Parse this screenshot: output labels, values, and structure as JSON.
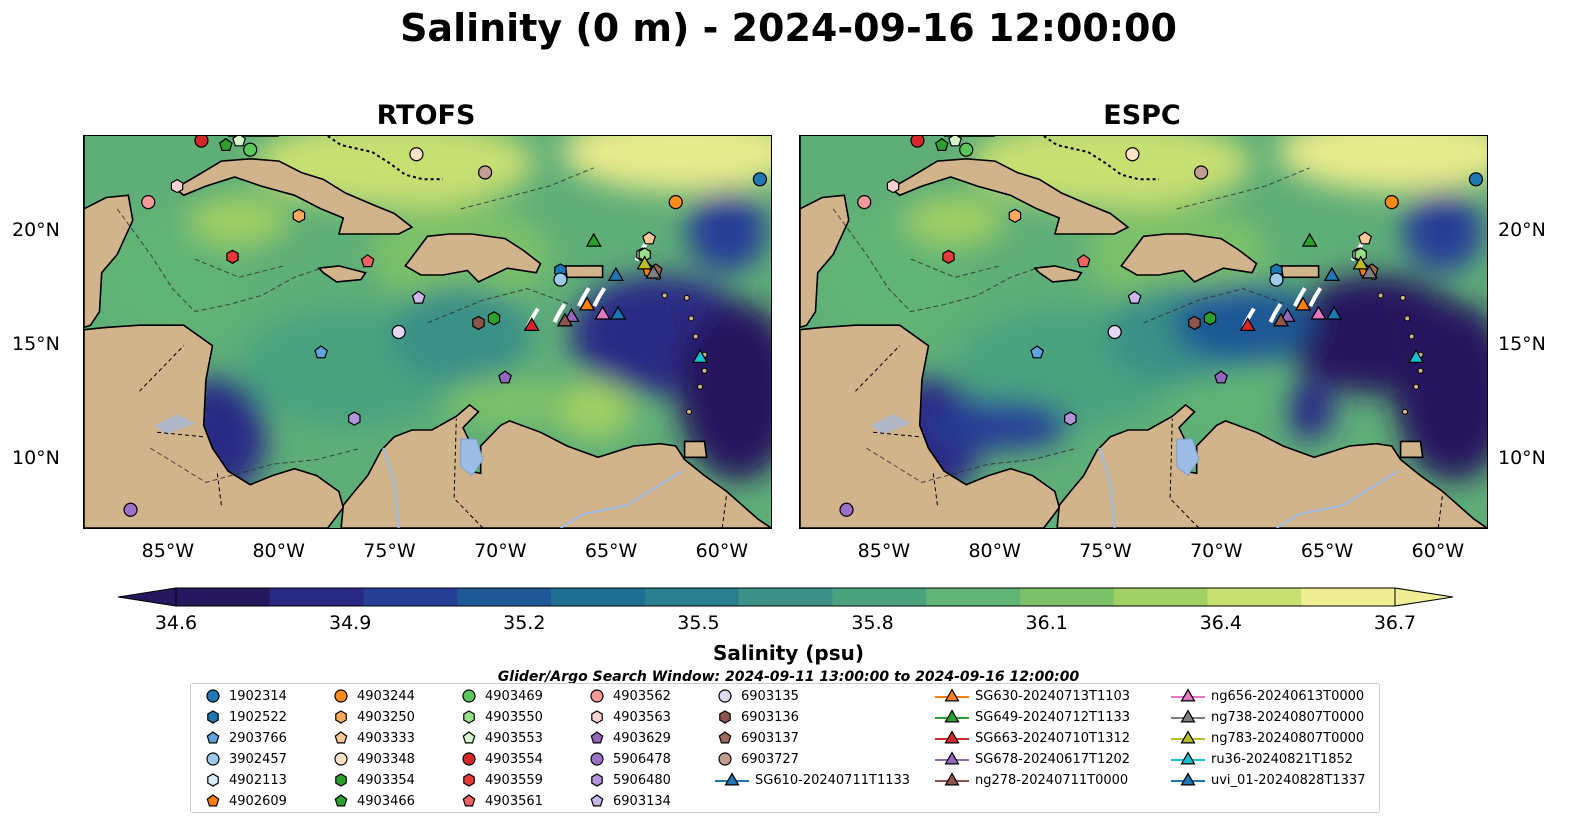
{
  "title": "Salinity (0 m) - 2024-09-16 12:00:00",
  "panels": [
    {
      "name": "RTOFS",
      "side": "left"
    },
    {
      "name": "ESPC",
      "side": "right"
    }
  ],
  "map_extent": {
    "lon": [
      -89,
      -58
    ],
    "lat": [
      7,
      24.2
    ]
  },
  "lon_ticks": [
    {
      "value": -85,
      "label": "85°W"
    },
    {
      "value": -80,
      "label": "80°W"
    },
    {
      "value": -75,
      "label": "75°W"
    },
    {
      "value": -70,
      "label": "70°W"
    },
    {
      "value": -65,
      "label": "65°W"
    },
    {
      "value": -60,
      "label": "60°W"
    }
  ],
  "lat_ticks": [
    {
      "value": 20,
      "label": "20°N"
    },
    {
      "value": 15,
      "label": "15°N"
    },
    {
      "value": 10,
      "label": "10°N"
    }
  ],
  "colorbar": {
    "title": "Salinity (psu)",
    "min": 34.6,
    "max": 36.7,
    "ticks": [
      "34.6",
      "34.9",
      "35.2",
      "35.5",
      "35.8",
      "36.1",
      "36.4",
      "36.7"
    ],
    "colors": [
      "#26185f",
      "#2a2a85",
      "#263e96",
      "#1f5896",
      "#1e6f92",
      "#297f8d",
      "#3b9087",
      "#4aa37f",
      "#60b475",
      "#7cc169",
      "#a0cf64",
      "#c8df72",
      "#f0ee95"
    ]
  },
  "search_window": "Glider/Argo Search Window: 2024-09-11 13:00:00 to 2024-09-16 12:00:00",
  "legend": {
    "columns": [
      [
        {
          "label": "1902314",
          "marker": "circle",
          "color": "#1f77b4"
        },
        {
          "label": "1902522",
          "marker": "hexagon",
          "color": "#1f77b4"
        },
        {
          "label": "2903766",
          "marker": "pentagon",
          "color": "#5fa2dd"
        },
        {
          "label": "3902457",
          "marker": "circle",
          "color": "#9ecae9"
        },
        {
          "label": "4902113",
          "marker": "hexagon",
          "color": "#d9ecf8"
        },
        {
          "label": "4902609",
          "marker": "pentagon",
          "color": "#ff7f0e"
        }
      ],
      [
        {
          "label": "4903244",
          "marker": "circle",
          "color": "#ff8c1a"
        },
        {
          "label": "4903250",
          "marker": "hexagon",
          "color": "#ffa95c"
        },
        {
          "label": "4903333",
          "marker": "pentagon",
          "color": "#ffc999"
        },
        {
          "label": "4903348",
          "marker": "circle",
          "color": "#ffe3c8"
        },
        {
          "label": "4903354",
          "marker": "hexagon",
          "color": "#2ca02c"
        },
        {
          "label": "4903466",
          "marker": "pentagon",
          "color": "#2ca02c"
        }
      ],
      [
        {
          "label": "4903469",
          "marker": "circle",
          "color": "#5cc65c"
        },
        {
          "label": "4903550",
          "marker": "hexagon",
          "color": "#98df8a"
        },
        {
          "label": "4903553",
          "marker": "pentagon",
          "color": "#d5f5cc"
        },
        {
          "label": "4903554",
          "marker": "circle",
          "color": "#d62728"
        },
        {
          "label": "4903559",
          "marker": "hexagon",
          "color": "#e5393a"
        },
        {
          "label": "4903561",
          "marker": "pentagon",
          "color": "#f06262"
        }
      ],
      [
        {
          "label": "4903562",
          "marker": "circle",
          "color": "#f59a9a"
        },
        {
          "label": "4903563",
          "marker": "hexagon",
          "color": "#fcd2d2"
        },
        {
          "label": "4903629",
          "marker": "pentagon",
          "color": "#9467bd"
        },
        {
          "label": "5906478",
          "marker": "circle",
          "color": "#9b70c5"
        },
        {
          "label": "5906480",
          "marker": "hexagon",
          "color": "#b394d8"
        },
        {
          "label": "6903134",
          "marker": "pentagon",
          "color": "#cdb8ea"
        }
      ],
      [
        {
          "label": "6903135",
          "marker": "circle",
          "color": "#e6d6f6"
        },
        {
          "label": "6903136",
          "marker": "hexagon",
          "color": "#8c564b"
        },
        {
          "label": "6903137",
          "marker": "pentagon",
          "color": "#9c6a5c"
        },
        {
          "label": "6903727",
          "marker": "circle",
          "color": "#c49c94"
        },
        {
          "label": "SG610-20240711T1133",
          "marker": "triangle",
          "color": "#1f77b4"
        }
      ],
      [
        {
          "label": "SG630-20240713T1103",
          "marker": "triangle",
          "color": "#ff7f0e"
        },
        {
          "label": "SG649-20240712T1133",
          "marker": "triangle",
          "color": "#2ca02c"
        },
        {
          "label": "SG663-20240710T1312",
          "marker": "triangle",
          "color": "#d62728"
        },
        {
          "label": "SG678-20240617T1202",
          "marker": "triangle",
          "color": "#9467bd"
        },
        {
          "label": "ng278-20240711T0000",
          "marker": "triangle",
          "color": "#8c564b"
        }
      ],
      [
        {
          "label": "ng656-20240613T0000",
          "marker": "triangle",
          "color": "#e377c2"
        },
        {
          "label": "ng738-20240807T0000",
          "marker": "triangle",
          "color": "#7f7f7f"
        },
        {
          "label": "ng783-20240807T0000",
          "marker": "triangle",
          "color": "#bcbd22"
        },
        {
          "label": "ru36-20240821T1852",
          "marker": "triangle",
          "color": "#17becf"
        },
        {
          "label": "uvi_01-20240828T1337",
          "marker": "triangle",
          "color": "#1f77b4"
        }
      ]
    ]
  },
  "markers": [
    {
      "id": "1902314",
      "lon": -58.5,
      "lat": 22.3
    },
    {
      "id": "1902522",
      "lon": -67.5,
      "lat": 18.3
    },
    {
      "id": "2903766",
      "lon": -78.3,
      "lat": 14.7
    },
    {
      "id": "3902457",
      "lon": -67.5,
      "lat": 17.9
    },
    {
      "id": "4902113",
      "lon": -63.8,
      "lat": 19.0
    },
    {
      "id": "4902609",
      "lon": -63.5,
      "lat": 18.3
    },
    {
      "id": "4903244",
      "lon": -62.3,
      "lat": 21.3
    },
    {
      "id": "4903250",
      "lon": -79.3,
      "lat": 20.7
    },
    {
      "id": "4903333",
      "lon": -63.5,
      "lat": 19.7
    },
    {
      "id": "4903348",
      "lon": -74.0,
      "lat": 23.4
    },
    {
      "id": "4903354",
      "lon": -70.5,
      "lat": 16.2
    },
    {
      "id": "4903466",
      "lon": -82.6,
      "lat": 23.8
    },
    {
      "id": "4903469",
      "lon": -81.5,
      "lat": 23.6
    },
    {
      "id": "4903550",
      "lon": -63.7,
      "lat": 19.0
    },
    {
      "id": "4903553",
      "lon": -82.0,
      "lat": 24.0
    },
    {
      "id": "4903554",
      "lon": -83.7,
      "lat": 24.0
    },
    {
      "id": "4903559",
      "lon": -82.3,
      "lat": 18.9
    },
    {
      "id": "4903561",
      "lon": -76.2,
      "lat": 18.7
    },
    {
      "id": "4903562",
      "lon": -86.1,
      "lat": 21.3
    },
    {
      "id": "4903563",
      "lon": -84.8,
      "lat": 22.0
    },
    {
      "id": "4903629",
      "lon": -70.0,
      "lat": 13.6
    },
    {
      "id": "5906478",
      "lon": -86.9,
      "lat": 7.8
    },
    {
      "id": "5906480",
      "lon": -76.8,
      "lat": 11.8
    },
    {
      "id": "6903134",
      "lon": -73.9,
      "lat": 17.1
    },
    {
      "id": "6903135",
      "lon": -74.8,
      "lat": 15.6
    },
    {
      "id": "6903136",
      "lon": -71.2,
      "lat": 16.0
    },
    {
      "id": "6903137",
      "lon": -63.2,
      "lat": 18.3
    },
    {
      "id": "6903727",
      "lon": -70.9,
      "lat": 22.6
    },
    {
      "id": "SG610-20240711T1133",
      "lon": -65.0,
      "lat": 18.1
    },
    {
      "id": "SG630-20240713T1103",
      "lon": -66.3,
      "lat": 16.8
    },
    {
      "id": "SG649-20240712T1133",
      "lon": -66.0,
      "lat": 19.6
    },
    {
      "id": "SG663-20240710T1312",
      "lon": -68.8,
      "lat": 15.9
    },
    {
      "id": "SG678-20240617T1202",
      "lon": -67.0,
      "lat": 16.3
    },
    {
      "id": "ng278-20240711T0000",
      "lon": -67.3,
      "lat": 16.1
    },
    {
      "id": "ng656-20240613T0000",
      "lon": -65.6,
      "lat": 16.4
    },
    {
      "id": "ng738-20240807T0000",
      "lon": -63.3,
      "lat": 18.2
    },
    {
      "id": "ng783-20240807T0000",
      "lon": -63.7,
      "lat": 18.6
    },
    {
      "id": "ru36-20240821T1852",
      "lon": -61.2,
      "lat": 14.5
    },
    {
      "id": "uvi_01-20240828T1337",
      "lon": -64.9,
      "lat": 16.4
    }
  ],
  "colors": {
    "land": "#d2b48c",
    "lake": "#9dbce6",
    "ocean_fill": "#5fae78"
  }
}
